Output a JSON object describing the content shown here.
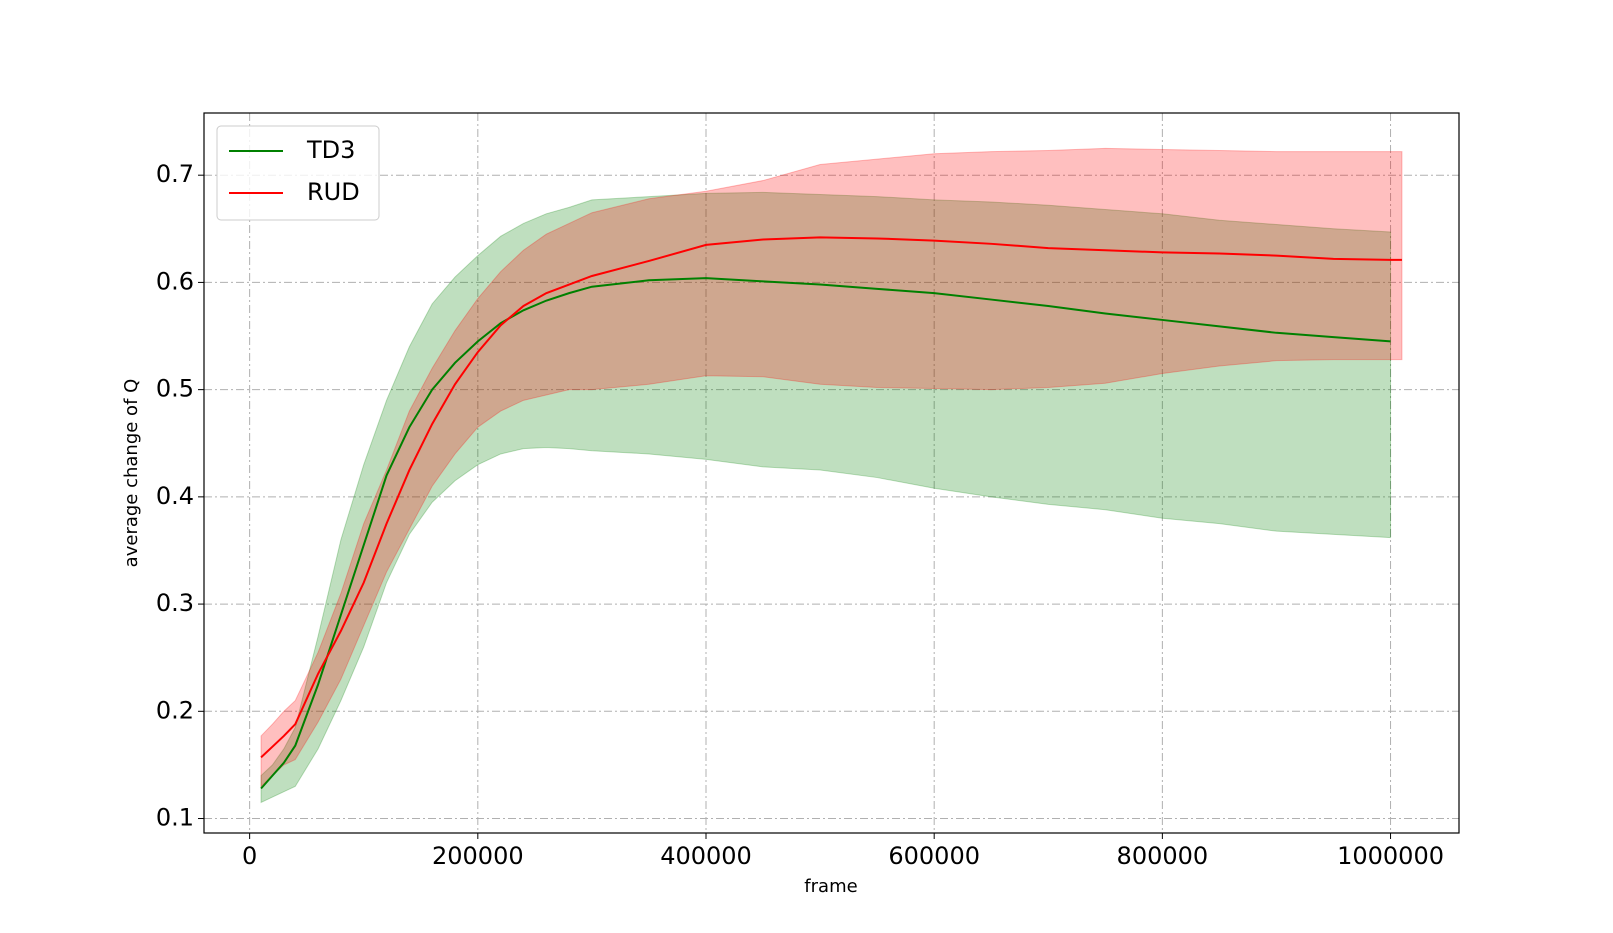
{
  "chart_data": {
    "type": "line",
    "xlabel": "frame",
    "ylabel": "average change of Q",
    "x": [
      10000,
      20000,
      30000,
      40000,
      60000,
      80000,
      100000,
      120000,
      140000,
      160000,
      180000,
      200000,
      220000,
      240000,
      260000,
      280000,
      300000,
      350000,
      400000,
      450000,
      500000,
      550000,
      600000,
      650000,
      700000,
      750000,
      800000,
      850000,
      900000,
      950000,
      1000000,
      1010000
    ],
    "series": [
      {
        "name": "TD3",
        "color": "#008000",
        "values": [
          0.128,
          0.14,
          0.152,
          0.168,
          0.225,
          0.29,
          0.355,
          0.42,
          0.465,
          0.5,
          0.525,
          0.545,
          0.562,
          0.574,
          0.583,
          0.59,
          0.596,
          0.602,
          0.604,
          0.601,
          0.598,
          0.594,
          0.59,
          0.584,
          0.578,
          0.571,
          0.565,
          0.559,
          0.553,
          0.549,
          0.545,
          null
        ],
        "lower": [
          0.115,
          0.12,
          0.125,
          0.13,
          0.165,
          0.21,
          0.26,
          0.32,
          0.365,
          0.395,
          0.415,
          0.43,
          0.44,
          0.445,
          0.446,
          0.445,
          0.443,
          0.44,
          0.435,
          0.428,
          0.425,
          0.418,
          0.408,
          0.4,
          0.393,
          0.388,
          0.38,
          0.375,
          0.368,
          0.365,
          0.362,
          null
        ],
        "upper": [
          0.14,
          0.15,
          0.165,
          0.185,
          0.27,
          0.36,
          0.43,
          0.49,
          0.54,
          0.58,
          0.605,
          0.625,
          0.643,
          0.655,
          0.664,
          0.67,
          0.677,
          0.68,
          0.683,
          0.684,
          0.682,
          0.68,
          0.677,
          0.675,
          0.672,
          0.668,
          0.664,
          0.658,
          0.654,
          0.65,
          0.647,
          null
        ]
      },
      {
        "name": "RUD",
        "color": "#ff0000",
        "values": [
          0.157,
          0.167,
          0.177,
          0.188,
          0.235,
          0.275,
          0.32,
          0.375,
          0.425,
          0.468,
          0.505,
          0.535,
          0.56,
          0.578,
          0.59,
          0.598,
          0.606,
          0.62,
          0.635,
          0.64,
          0.642,
          0.641,
          0.639,
          0.636,
          0.632,
          0.63,
          0.628,
          0.627,
          0.625,
          0.622,
          0.621,
          0.621
        ],
        "lower": [
          0.13,
          0.14,
          0.15,
          0.155,
          0.19,
          0.23,
          0.28,
          0.33,
          0.37,
          0.41,
          0.44,
          0.465,
          0.48,
          0.49,
          0.495,
          0.5,
          0.5,
          0.505,
          0.513,
          0.512,
          0.505,
          0.502,
          0.501,
          0.5,
          0.502,
          0.506,
          0.515,
          0.522,
          0.527,
          0.528,
          0.528,
          0.528
        ],
        "upper": [
          0.177,
          0.188,
          0.2,
          0.21,
          0.255,
          0.31,
          0.375,
          0.425,
          0.48,
          0.52,
          0.555,
          0.585,
          0.61,
          0.63,
          0.645,
          0.655,
          0.665,
          0.678,
          0.685,
          0.695,
          0.71,
          0.715,
          0.72,
          0.722,
          0.723,
          0.725,
          0.724,
          0.723,
          0.722,
          0.722,
          0.722,
          0.722
        ]
      }
    ],
    "band_opacity": 0.25,
    "xlim": [
      -40000,
      1060000
    ],
    "ylim": [
      0.0865,
      0.758
    ],
    "xticks": [
      0,
      200000,
      400000,
      600000,
      800000,
      1000000
    ],
    "yticks": [
      0.1,
      0.2,
      0.3,
      0.4,
      0.5,
      0.6,
      0.7
    ],
    "grid": true,
    "legend": "upper left"
  }
}
